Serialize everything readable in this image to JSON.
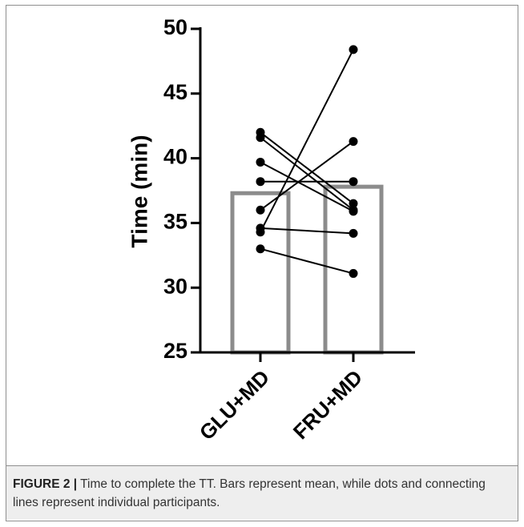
{
  "chart_data": {
    "type": "bar",
    "categories": [
      "GLU+MD",
      "FRU+MD"
    ],
    "values": [
      37.3,
      37.8
    ],
    "ylabel": "Time (min)",
    "ylim": [
      25,
      50
    ],
    "yticks": [
      25,
      30,
      35,
      40,
      45,
      50
    ],
    "grid": false,
    "legend": "none",
    "bar_color": "#8c8c8c",
    "point_color": "#000000",
    "participants": [
      {
        "glu": 42.0,
        "fru": 36.5
      },
      {
        "glu": 41.6,
        "fru": 36.0
      },
      {
        "glu": 39.7,
        "fru": 35.9
      },
      {
        "glu": 38.2,
        "fru": 38.2
      },
      {
        "glu": 36.0,
        "fru": 41.3
      },
      {
        "glu": 34.6,
        "fru": 34.2
      },
      {
        "glu": 34.3,
        "fru": 48.4
      },
      {
        "glu": 33.0,
        "fru": 31.1
      }
    ]
  },
  "caption": {
    "label": "FIGURE 2 |",
    "text": " Time to complete the TT. Bars represent mean, while dots and connecting lines represent individual participants."
  }
}
